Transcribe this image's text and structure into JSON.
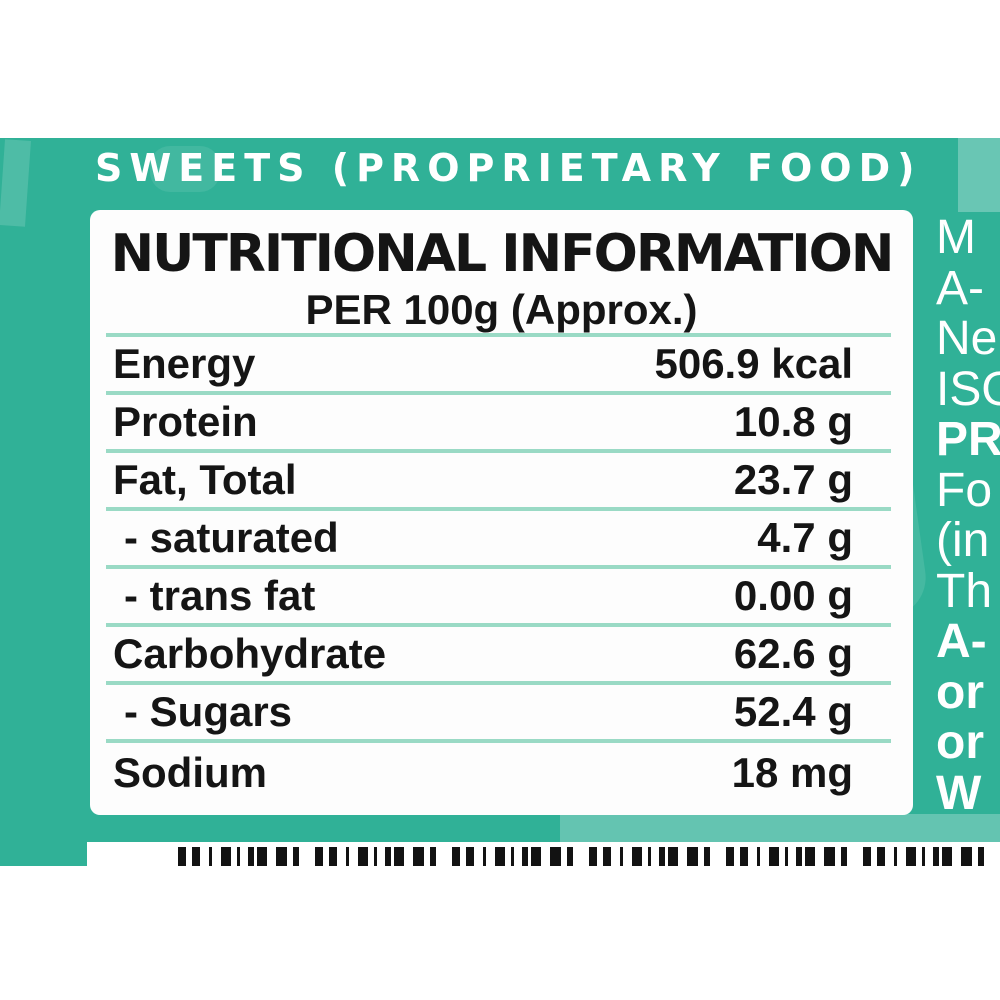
{
  "header": {
    "category_title": "SWEETS (PROPRIETARY FOOD)"
  },
  "nutrition": {
    "title": "NUTRITIONAL INFORMATION",
    "subtitle": "PER 100g (Approx.)",
    "rows": [
      {
        "label": "Energy",
        "value": "506.9 kcal"
      },
      {
        "label": "Protein",
        "value": "10.8 g"
      },
      {
        "label": "Fat, Total",
        "value": "23.7 g"
      },
      {
        "label": "- saturated",
        "value": "4.7 g"
      },
      {
        "label": "- trans fat",
        "value": "0.00 g"
      },
      {
        "label": "Carbohydrate",
        "value": "62.6 g"
      },
      {
        "label": "- Sugars",
        "value": "52.4 g"
      },
      {
        "label": "Sodium",
        "value": "18 mg"
      }
    ]
  },
  "side_text": {
    "lines": [
      "M",
      "A-",
      "Ne",
      "ISO",
      "PR",
      "Fo",
      "(in",
      "Th",
      "A-",
      "or",
      "or",
      "W"
    ]
  },
  "footer": {
    "barcode": "partial-barcode-strip"
  },
  "colors": {
    "teal_background": "#30b197",
    "teal_texture_light": "#5cc7ae",
    "divider_line": "#9adac5",
    "panel_background": "#fdfdfd",
    "text_black": "#151515",
    "text_white": "#ffffff",
    "barcode_black": "#121212"
  }
}
